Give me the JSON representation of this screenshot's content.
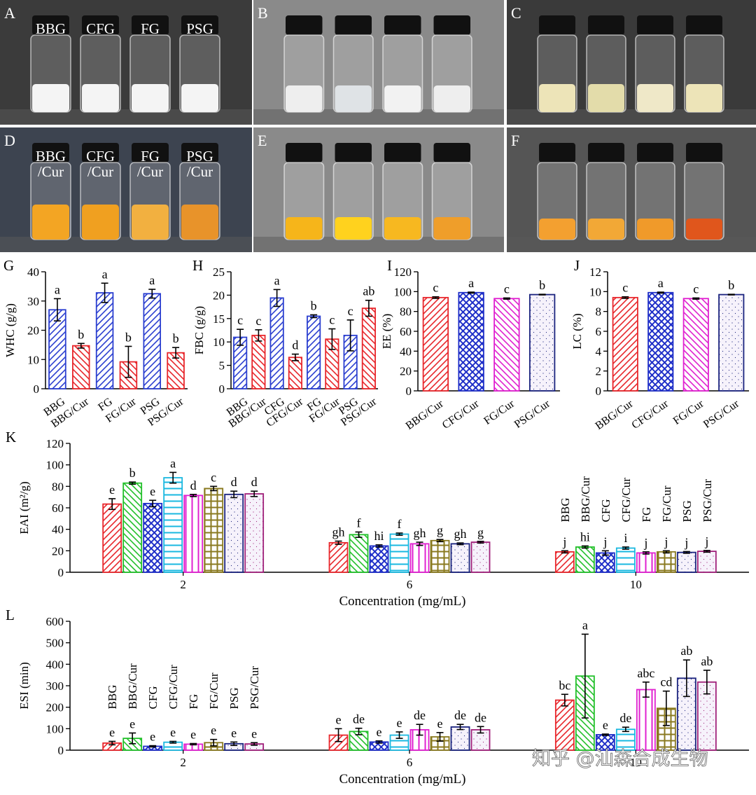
{
  "photos": [
    {
      "panel": "A",
      "labels": [
        [
          "BBG"
        ],
        [
          "CFG"
        ],
        [
          "FG"
        ],
        [
          "PSG"
        ]
      ]
    },
    {
      "panel": "B",
      "labels": []
    },
    {
      "panel": "C",
      "labels": []
    },
    {
      "panel": "D",
      "labels": [
        [
          "BBG",
          "/Cur"
        ],
        [
          "CFG",
          "/Cur"
        ],
        [
          "FG",
          "/Cur"
        ],
        [
          "PSG",
          "/Cur"
        ]
      ]
    },
    {
      "panel": "E",
      "labels": []
    },
    {
      "panel": "F",
      "labels": []
    }
  ],
  "watermark": "知乎 @汕森合成生物",
  "chart_data": [
    {
      "type": "bar",
      "panel": "G",
      "ylabel": "WHC (g/g)",
      "categories": [
        "BBG",
        "BBG/Cur",
        "FG",
        "FG/Cur",
        "PSG",
        "PSG/Cur"
      ],
      "values": [
        27,
        14.7,
        32.8,
        9.2,
        32.5,
        12.3
      ],
      "errors": [
        3.8,
        0.8,
        3.3,
        5.3,
        1.5,
        1.8
      ],
      "letters": [
        "a",
        "b",
        "a",
        "b",
        "a",
        "b"
      ],
      "colors": [
        "#2b3fd0",
        "#e8262b",
        "#2b3fd0",
        "#e8262b",
        "#2b3fd0",
        "#e8262b"
      ],
      "hatches": [
        "/",
        "\\",
        "/",
        "\\",
        "/",
        "\\"
      ],
      "ylim": [
        0,
        40
      ],
      "yticks": [
        0,
        10,
        20,
        30,
        40
      ]
    },
    {
      "type": "bar",
      "panel": "H",
      "ylabel": "FBC (g/g)",
      "categories": [
        "BBG",
        "BBG/Cur",
        "CFG",
        "CFG/Cur",
        "FG",
        "FG/Cur",
        "PSG",
        "PSG/Cur"
      ],
      "values": [
        11,
        11.4,
        19.4,
        6.7,
        15.5,
        10.6,
        11.4,
        17.2
      ],
      "errors": [
        1.7,
        1.2,
        1.8,
        0.7,
        0.3,
        2.2,
        3.3,
        1.7
      ],
      "letters": [
        "c",
        "c",
        "a",
        "d",
        "b",
        "c",
        "c",
        "ab"
      ],
      "colors": [
        "#2b3fd0",
        "#e8262b",
        "#2b3fd0",
        "#e8262b",
        "#2b3fd0",
        "#e8262b",
        "#2b3fd0",
        "#e8262b"
      ],
      "hatches": [
        "/",
        "\\",
        "/",
        "\\",
        "/",
        "\\",
        "/",
        "\\"
      ],
      "ylim": [
        0,
        25
      ],
      "yticks": [
        0,
        5,
        10,
        15,
        20,
        25
      ]
    },
    {
      "type": "bar",
      "panel": "I",
      "ylabel": "EE (%)",
      "categories": [
        "BBG/Cur",
        "CFG/Cur",
        "FG/Cur",
        "PSG/Cur"
      ],
      "values": [
        94,
        99,
        93,
        97
      ],
      "errors": [
        0.8,
        0.5,
        0.6,
        0.3
      ],
      "letters": [
        "c",
        "a",
        "c",
        "b"
      ],
      "colors": [
        "#e8262b",
        "#1f2fc8",
        "#e020d0",
        "#1a237e"
      ],
      "hatches": [
        "/",
        "x",
        "\\",
        "dots"
      ],
      "ylim": [
        0,
        120
      ],
      "yticks": [
        0,
        20,
        40,
        60,
        80,
        100,
        120
      ]
    },
    {
      "type": "bar",
      "panel": "J",
      "ylabel": "LC (%)",
      "categories": [
        "BBG/Cur",
        "CFG/Cur",
        "FG/Cur",
        "PSG/Cur"
      ],
      "values": [
        9.4,
        9.9,
        9.3,
        9.7
      ],
      "errors": [
        0.08,
        0.05,
        0.06,
        0.03
      ],
      "letters": [
        "c",
        "a",
        "c",
        "b"
      ],
      "colors": [
        "#e8262b",
        "#1f2fc8",
        "#e020d0",
        "#1a237e"
      ],
      "hatches": [
        "/",
        "x",
        "\\",
        "dots"
      ],
      "ylim": [
        0,
        12
      ],
      "yticks": [
        0,
        2,
        4,
        6,
        8,
        10,
        12
      ]
    },
    {
      "type": "grouped_bar",
      "panel": "K",
      "ylabel": "EAI (m²/g)",
      "xlabel": "Concentration (mg/mL)",
      "categories": [
        "2",
        "6",
        "10"
      ],
      "legend": "upper right",
      "ylim": [
        0,
        120
      ],
      "yticks": [
        0,
        20,
        40,
        60,
        80,
        100,
        120
      ],
      "series": [
        {
          "name": "BBG",
          "color": "#e8262b",
          "hatch": "/",
          "values": [
            63.5,
            27.5,
            19
          ],
          "errors": [
            5,
            1.5,
            1
          ],
          "letters": [
            "e",
            "gh",
            "j"
          ]
        },
        {
          "name": "BBG/Cur",
          "color": "#22c02a",
          "hatch": "\\",
          "values": [
            83,
            35,
            23.5
          ],
          "errors": [
            1,
            2.5,
            1
          ],
          "letters": [
            "b",
            "f",
            "hi"
          ]
        },
        {
          "name": "CFG",
          "color": "#1f2fc8",
          "hatch": "x",
          "values": [
            64,
            24.5,
            18
          ],
          "errors": [
            3,
            1,
            2
          ],
          "letters": [
            "e",
            "hi",
            "j"
          ]
        },
        {
          "name": "CFG/Cur",
          "color": "#1ab8e0",
          "hatch": "-",
          "values": [
            88,
            35.5,
            22.5
          ],
          "errors": [
            5,
            1,
            1
          ],
          "letters": [
            "a",
            "f",
            "i"
          ]
        },
        {
          "name": "FG",
          "color": "#e020d0",
          "hatch": "|",
          "values": [
            71.5,
            26.5,
            18
          ],
          "errors": [
            1,
            1.5,
            1
          ],
          "letters": [
            "d",
            "gh",
            "j"
          ]
        },
        {
          "name": "FG/Cur",
          "color": "#8a7a20",
          "hatch": "+",
          "values": [
            78,
            29.5,
            19
          ],
          "errors": [
            2,
            1,
            1
          ],
          "letters": [
            "c",
            "g",
            "j"
          ]
        },
        {
          "name": "PSG",
          "color": "#1a237e",
          "hatch": "dots",
          "values": [
            72.5,
            26.5,
            18.5
          ],
          "errors": [
            3,
            0.8,
            0.8
          ],
          "letters": [
            "d",
            "gh",
            "j"
          ]
        },
        {
          "name": "PSG/Cur",
          "color": "#a0207a",
          "hatch": "dots",
          "values": [
            73,
            28,
            19.5
          ],
          "errors": [
            2.5,
            0.8,
            0.8
          ],
          "letters": [
            "d",
            "g",
            "j"
          ]
        }
      ]
    },
    {
      "type": "grouped_bar",
      "panel": "L",
      "ylabel": "ESI (min)",
      "xlabel": "Concentration (mg/mL)",
      "categories": [
        "2",
        "6",
        "10"
      ],
      "legend": "upper left",
      "ylim": [
        0,
        600
      ],
      "yticks": [
        0,
        100,
        200,
        300,
        400,
        500,
        600
      ],
      "series": [
        {
          "name": "BBG",
          "color": "#e8262b",
          "hatch": "/",
          "values": [
            33,
            70,
            233
          ],
          "errors": [
            8,
            30,
            27
          ],
          "letters": [
            "e",
            "e",
            "bc"
          ]
        },
        {
          "name": "BBG/Cur",
          "color": "#22c02a",
          "hatch": "\\",
          "values": [
            55,
            87,
            345
          ],
          "errors": [
            25,
            15,
            195
          ],
          "letters": [
            "e",
            "de",
            "a"
          ]
        },
        {
          "name": "CFG",
          "color": "#1f2fc8",
          "hatch": "x",
          "values": [
            18,
            38,
            72
          ],
          "errors": [
            3,
            5,
            3
          ],
          "letters": [
            "e",
            "e",
            "e"
          ]
        },
        {
          "name": "CFG/Cur",
          "color": "#1ab8e0",
          "hatch": "-",
          "values": [
            37,
            70,
            97
          ],
          "errors": [
            4,
            15,
            10
          ],
          "letters": [
            "e",
            "e",
            "de"
          ]
        },
        {
          "name": "FG",
          "color": "#e020d0",
          "hatch": "|",
          "values": [
            28,
            95,
            282
          ],
          "errors": [
            3,
            25,
            35
          ],
          "letters": [
            "e",
            "de",
            "abc"
          ]
        },
        {
          "name": "FG/Cur",
          "color": "#8a7a20",
          "hatch": "+",
          "values": [
            35,
            62,
            195
          ],
          "errors": [
            15,
            20,
            80
          ],
          "letters": [
            "e",
            "e",
            "cd"
          ]
        },
        {
          "name": "PSG",
          "color": "#1a237e",
          "hatch": "dots",
          "values": [
            30,
            108,
            335
          ],
          "errors": [
            8,
            12,
            85
          ],
          "letters": [
            "e",
            "de",
            "ab"
          ]
        },
        {
          "name": "PSG/Cur",
          "color": "#a0207a",
          "hatch": "dots",
          "values": [
            29,
            95,
            317
          ],
          "errors": [
            6,
            15,
            55
          ],
          "letters": [
            "e",
            "de",
            "ab"
          ]
        }
      ]
    }
  ]
}
